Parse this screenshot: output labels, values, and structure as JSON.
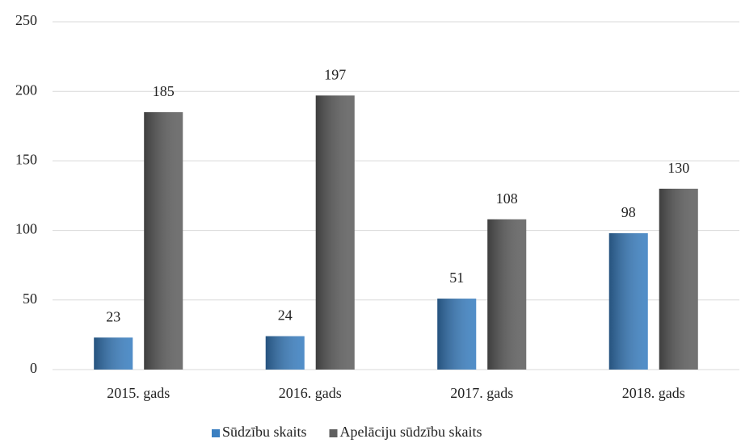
{
  "chart_data": {
    "type": "bar",
    "categories": [
      "2015. gads",
      "2016. gads",
      "2017. gads",
      "2018. gads"
    ],
    "series": [
      {
        "name": "Sūdzību skaits",
        "color": "#3a7fc1",
        "values": [
          23,
          24,
          51,
          98
        ]
      },
      {
        "name": "Apelāciju sūdzību skaits",
        "color": "#5f5f5f",
        "values": [
          185,
          197,
          108,
          130
        ]
      }
    ],
    "ylim": [
      0,
      250
    ],
    "yticks": [
      0,
      50,
      100,
      150,
      200,
      250
    ],
    "grid": true,
    "legend": "bottom"
  }
}
